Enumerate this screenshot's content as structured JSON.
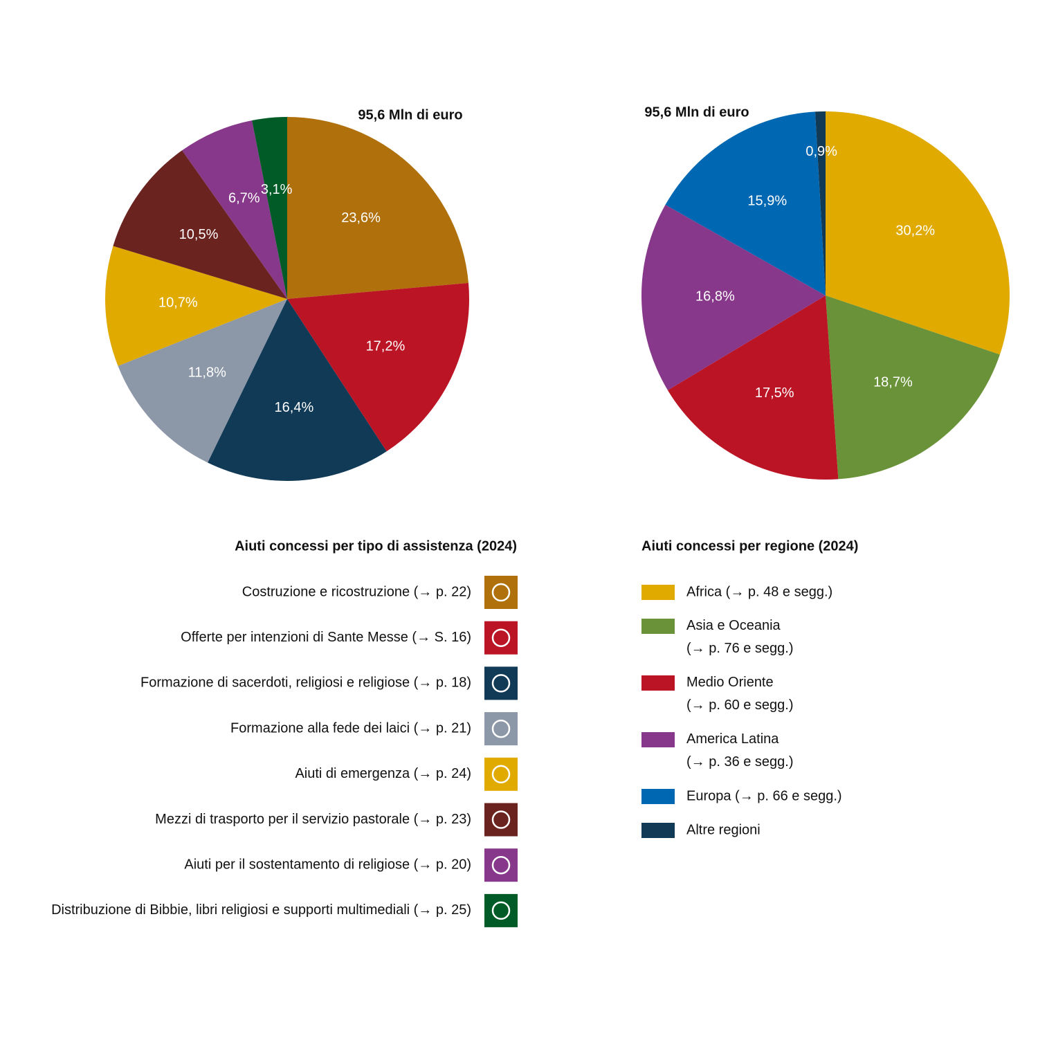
{
  "chart_data": [
    {
      "type": "pie",
      "title": "Aiuti concessi per tipo di assistenza (2024)",
      "annotation": "95,6 Mln di euro",
      "categories": [
        "Costruzione e ricostruzione (→ p. 22)",
        "Offerte per intenzioni di Sante Messe (→ S. 16)",
        "Formazione di sacerdoti, religiosi e religiose (→ p. 18)",
        "Formazione alla fede dei laici (→ p. 21)",
        "Aiuti di emergenza (→ p. 24)",
        "Mezzi di trasporto per il servizio pastorale (→ p. 23)",
        "Aiuti per il sostentamento di religiose (→ p. 20)",
        "Distribuzione di Bibbie, libri religiosi e supporti multimediali (→ p. 25)"
      ],
      "values": [
        23.6,
        17.2,
        16.4,
        11.8,
        10.7,
        10.5,
        6.7,
        3.1
      ],
      "value_labels": [
        "23,6%",
        "17,2%",
        "16,4%",
        "11,8%",
        "10,7%",
        "10,5%",
        "6,7%",
        "3,1%"
      ],
      "colors": [
        "#b0700c",
        "#bb1425",
        "#113a57",
        "#8c98a8",
        "#e0aa00",
        "#6b2320",
        "#87388a",
        "#005b27"
      ]
    },
    {
      "type": "pie",
      "title": "Aiuti concessi per regione (2024)",
      "annotation": "95,6 Mln di euro",
      "categories": [
        "Africa (→ p. 48 e segg.)",
        "Asia e Oceania\n(→ p. 76 e segg.)",
        "Medio Oriente\n(→ p. 60 e segg.)",
        "America Latina\n(→ p. 36 e segg.)",
        "Europa (→ p. 66 e segg.)",
        "Altre regioni"
      ],
      "values": [
        30.2,
        18.7,
        17.5,
        16.8,
        15.9,
        0.9
      ],
      "value_labels": [
        "30,2%",
        "18,7%",
        "17,5%",
        "16,8%",
        "15,9%",
        "0,9%"
      ],
      "colors": [
        "#e0aa00",
        "#6a9339",
        "#bb1425",
        "#87388a",
        "#0068b3",
        "#113a57"
      ]
    }
  ]
}
